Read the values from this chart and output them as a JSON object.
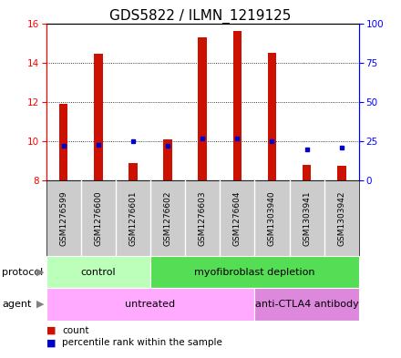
{
  "title": "GDS5822 / ILMN_1219125",
  "samples": [
    "GSM1276599",
    "GSM1276600",
    "GSM1276601",
    "GSM1276602",
    "GSM1276603",
    "GSM1276604",
    "GSM1303940",
    "GSM1303941",
    "GSM1303942"
  ],
  "count_values": [
    11.9,
    14.45,
    8.9,
    10.1,
    15.3,
    15.6,
    14.5,
    8.8,
    8.75
  ],
  "percentile_values": [
    22,
    23,
    25,
    22,
    27,
    27,
    25,
    20,
    21
  ],
  "ylim_left": [
    8,
    16
  ],
  "ylim_right": [
    0,
    100
  ],
  "yticks_left": [
    8,
    10,
    12,
    14,
    16
  ],
  "yticks_right": [
    0,
    25,
    50,
    75,
    100
  ],
  "bar_bottom": 8.0,
  "bar_color": "#cc1100",
  "dot_color": "#0000cc",
  "protocol_groups": [
    {
      "label": "control",
      "start": 0,
      "end": 3,
      "color": "#bbffbb"
    },
    {
      "label": "myofibroblast depletion",
      "start": 3,
      "end": 9,
      "color": "#55dd55"
    }
  ],
  "agent_groups": [
    {
      "label": "untreated",
      "start": 0,
      "end": 6,
      "color": "#ffaaff"
    },
    {
      "label": "anti-CTLA4 antibody",
      "start": 6,
      "end": 9,
      "color": "#dd88dd"
    }
  ],
  "legend_count_label": "count",
  "legend_pct_label": "percentile rank within the sample",
  "background_color": "#ffffff",
  "plot_bg": "#ffffff",
  "xtick_area_bg": "#cccccc",
  "title_fontsize": 11,
  "tick_fontsize": 7.5,
  "bar_width": 0.25
}
